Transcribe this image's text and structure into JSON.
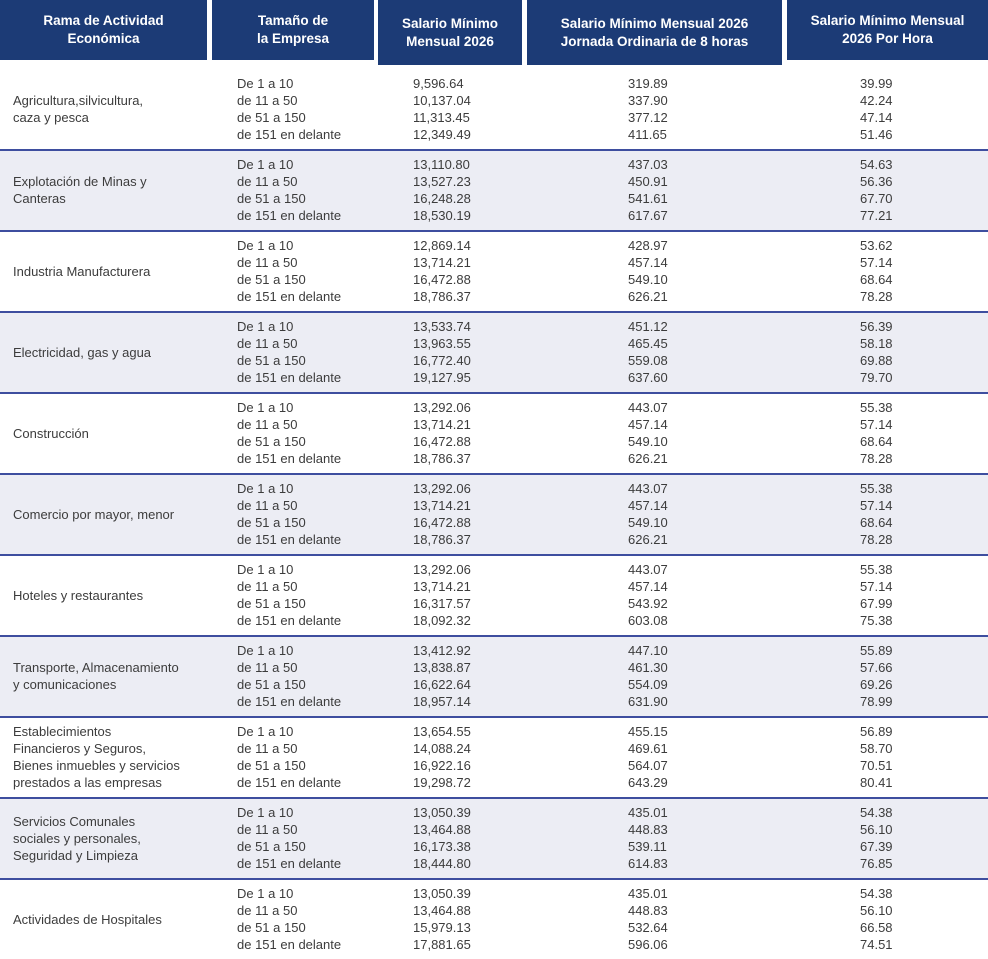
{
  "header": {
    "columns": [
      {
        "lines": [
          "Rama de Actividad",
          "Económica"
        ]
      },
      {
        "lines": [
          "Tamaño de",
          "la Empresa"
        ]
      },
      {
        "lines": [
          "Salario Mínimo",
          "Mensual 2026"
        ]
      },
      {
        "lines": [
          "Salario Mínimo Mensual 2026",
          "Jornada Ordinaria de 8 horas"
        ]
      },
      {
        "lines": [
          "Salario Mínimo Mensual",
          "2026 Por Hora"
        ]
      }
    ]
  },
  "company_sizes": [
    "De 1 a 10",
    "de 11 a 50",
    "de 51 a 150",
    "de 151 en delante"
  ],
  "colors": {
    "header_bg": "#1c3b76",
    "header_text": "#ffffff",
    "row_alt_bg": "#ecedf4",
    "divider": "#3e4e9f",
    "body_text": "#3c3c3c"
  },
  "rows": [
    {
      "activity": "Agricultura,silvicultura,\ncaza y pesca",
      "monthly": [
        "9,596.64",
        "10,137.04",
        "11,313.45",
        "12,349.49"
      ],
      "daily": [
        "319.89",
        "337.90",
        "377.12",
        "411.65"
      ],
      "hourly": [
        "39.99",
        "42.24",
        "47.14",
        "51.46"
      ]
    },
    {
      "activity": "Explotación de Minas y\nCanteras",
      "monthly": [
        "13,110.80",
        "13,527.23",
        "16,248.28",
        "18,530.19"
      ],
      "daily": [
        "437.03",
        "450.91",
        "541.61",
        "617.67"
      ],
      "hourly": [
        "54.63",
        "56.36",
        "67.70",
        "77.21"
      ]
    },
    {
      "activity": "Industria Manufacturera",
      "monthly": [
        "12,869.14",
        "13,714.21",
        "16,472.88",
        "18,786.37"
      ],
      "daily": [
        "428.97",
        "457.14",
        "549.10",
        "626.21"
      ],
      "hourly": [
        "53.62",
        "57.14",
        "68.64",
        "78.28"
      ]
    },
    {
      "activity": "Electricidad, gas y agua",
      "monthly": [
        "13,533.74",
        "13,963.55",
        "16,772.40",
        "19,127.95"
      ],
      "daily": [
        "451.12",
        "465.45",
        "559.08",
        "637.60"
      ],
      "hourly": [
        "56.39",
        "58.18",
        "69.88",
        "79.70"
      ]
    },
    {
      "activity": "Construcción",
      "monthly": [
        "13,292.06",
        "13,714.21",
        "16,472.88",
        "18,786.37"
      ],
      "daily": [
        "443.07",
        "457.14",
        "549.10",
        "626.21"
      ],
      "hourly": [
        "55.38",
        "57.14",
        "68.64",
        "78.28"
      ]
    },
    {
      "activity": "Comercio por mayor, menor",
      "monthly": [
        "13,292.06",
        "13,714.21",
        "16,472.88",
        "18,786.37"
      ],
      "daily": [
        "443.07",
        "457.14",
        "549.10",
        "626.21"
      ],
      "hourly": [
        "55.38",
        "57.14",
        "68.64",
        "78.28"
      ]
    },
    {
      "activity": "Hoteles y restaurantes",
      "monthly": [
        "13,292.06",
        "13,714.21",
        "16,317.57",
        "18,092.32"
      ],
      "daily": [
        "443.07",
        "457.14",
        "543.92",
        "603.08"
      ],
      "hourly": [
        "55.38",
        "57.14",
        "67.99",
        "75.38"
      ]
    },
    {
      "activity": "Transporte, Almacenamiento\ny comunicaciones",
      "monthly": [
        "13,412.92",
        "13,838.87",
        "16,622.64",
        "18,957.14"
      ],
      "daily": [
        "447.10",
        "461.30",
        "554.09",
        "631.90"
      ],
      "hourly": [
        "55.89",
        "57.66",
        "69.26",
        "78.99"
      ]
    },
    {
      "activity": "Establecimientos\nFinancieros y Seguros,\nBienes inmuebles y servicios\nprestados a las empresas",
      "monthly": [
        "13,654.55",
        "14,088.24",
        "16,922.16",
        "19,298.72"
      ],
      "daily": [
        "455.15",
        "469.61",
        "564.07",
        "643.29"
      ],
      "hourly": [
        "56.89",
        "58.70",
        "70.51",
        "80.41"
      ]
    },
    {
      "activity": "Servicios Comunales\nsociales y personales,\nSeguridad y Limpieza",
      "monthly": [
        "13,050.39",
        "13,464.88",
        "16,173.38",
        "18,444.80"
      ],
      "daily": [
        "435.01",
        "448.83",
        "539.11",
        "614.83"
      ],
      "hourly": [
        "54.38",
        "56.10",
        "67.39",
        "76.85"
      ]
    },
    {
      "activity": "Actividades de Hospitales",
      "monthly": [
        "13,050.39",
        "13,464.88",
        "15,979.13",
        "17,881.65"
      ],
      "daily": [
        "435.01",
        "448.83",
        "532.64",
        "596.06"
      ],
      "hourly": [
        "54.38",
        "56.10",
        "66.58",
        "74.51"
      ]
    }
  ]
}
